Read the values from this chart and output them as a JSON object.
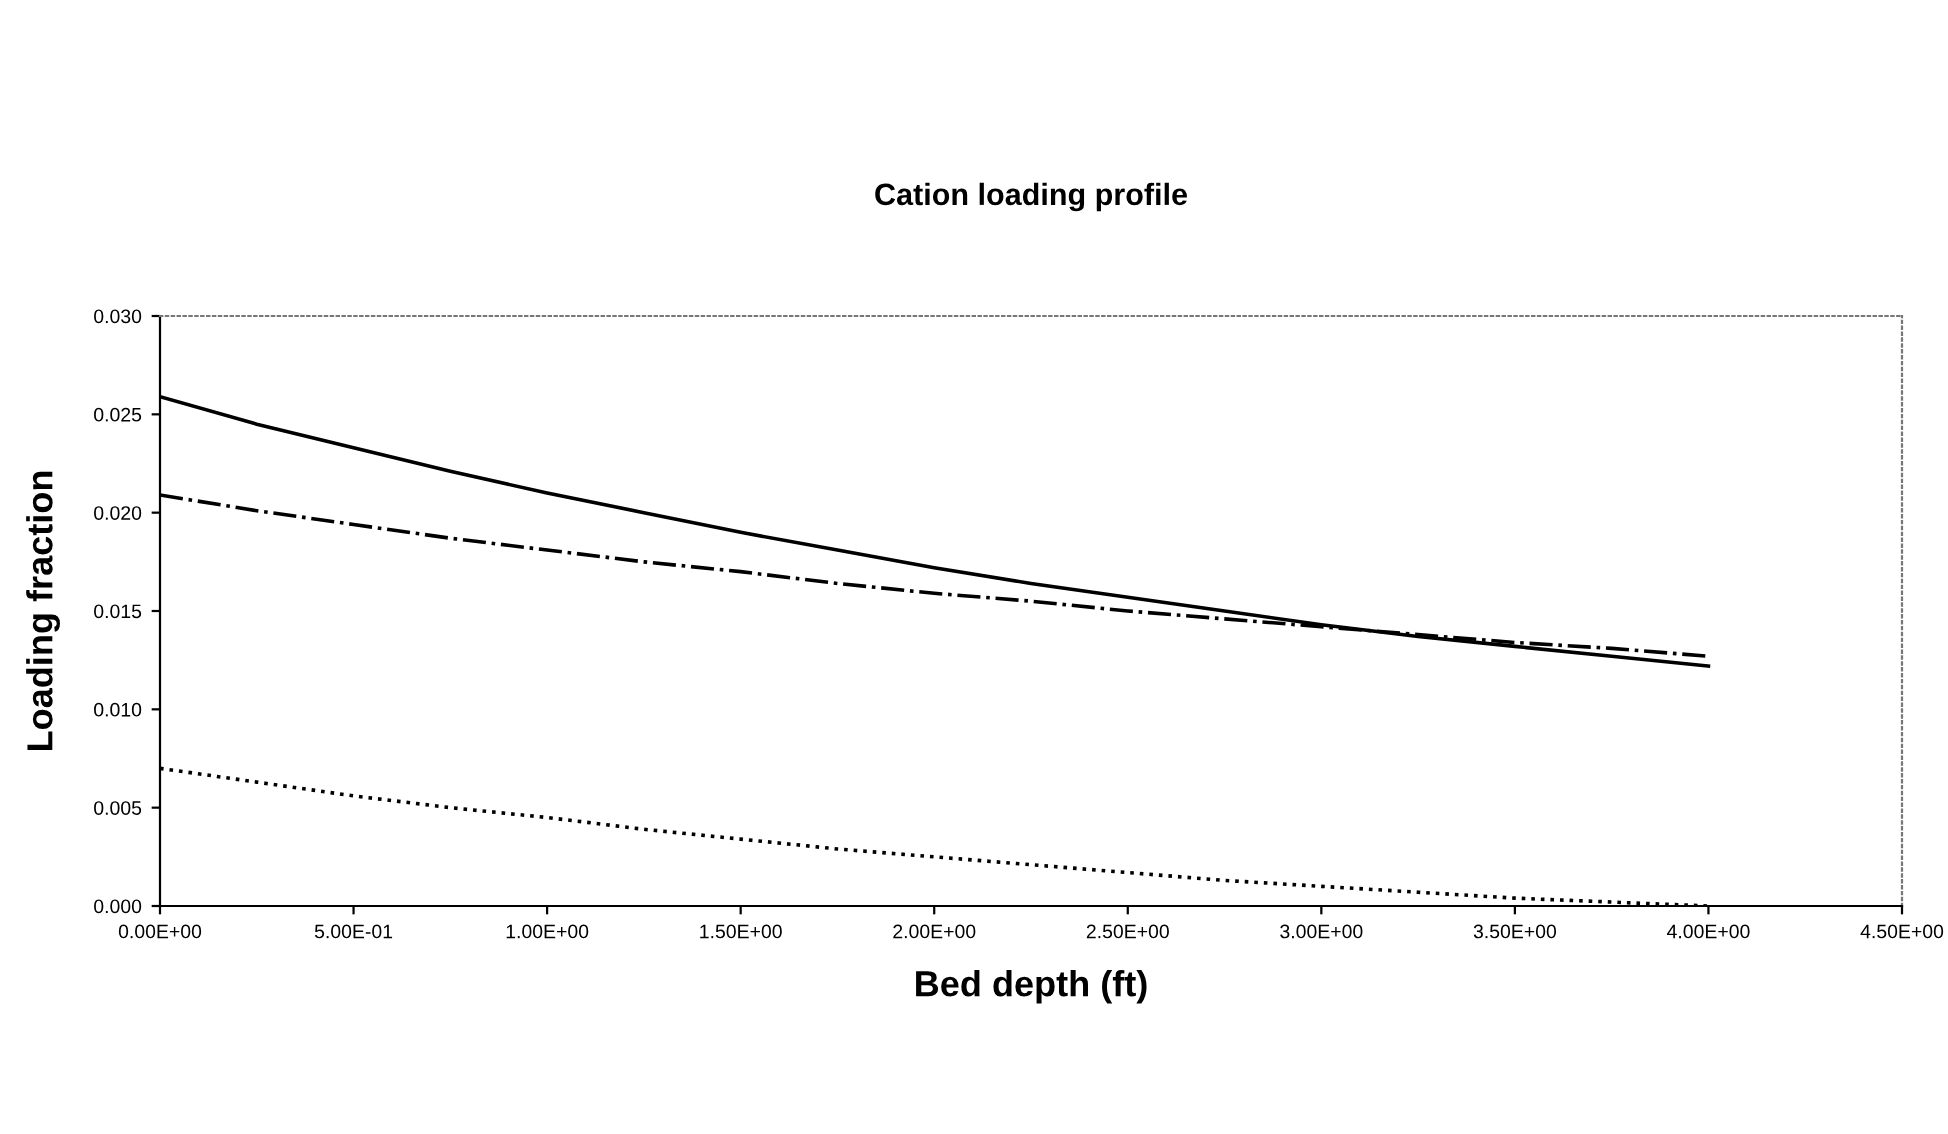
{
  "chart_data": {
    "type": "line",
    "title": "Cation loading profile",
    "xlabel": "Bed depth (ft)",
    "ylabel": "Loading fraction",
    "x": [
      0,
      0.25,
      0.5,
      0.75,
      1.0,
      1.25,
      1.5,
      1.75,
      2.0,
      2.25,
      2.5,
      2.75,
      3.0,
      3.25,
      3.5,
      3.75,
      4.0
    ],
    "series": [
      {
        "color": "#000000",
        "line_style": "solid",
        "values": [
          0.0259,
          0.0245,
          0.0233,
          0.0221,
          0.021,
          0.02,
          0.019,
          0.0181,
          0.0172,
          0.0164,
          0.0157,
          0.015,
          0.0143,
          0.0137,
          0.0132,
          0.0127,
          0.0122
        ]
      },
      {
        "color": "#000000",
        "line_style": "dashdot",
        "values": [
          0.0209,
          0.0201,
          0.0194,
          0.0187,
          0.0181,
          0.0175,
          0.017,
          0.0164,
          0.0159,
          0.0155,
          0.015,
          0.0146,
          0.0142,
          0.0138,
          0.0134,
          0.0131,
          0.0127
        ]
      },
      {
        "color": "#000000",
        "line_style": "dotted",
        "values": [
          0.007,
          0.0063,
          0.0056,
          0.005,
          0.0045,
          0.0039,
          0.0034,
          0.0029,
          0.0025,
          0.0021,
          0.0017,
          0.0013,
          0.001,
          0.0007,
          0.0004,
          0.0002,
          0.0
        ]
      }
    ],
    "xlim": [
      0,
      4.5
    ],
    "xticks": [
      {
        "value": 0,
        "label": "0.00E+00"
      },
      {
        "value": 0.5,
        "label": "5.00E-01"
      },
      {
        "value": 1.0,
        "label": "1.00E+00"
      },
      {
        "value": 1.5,
        "label": "1.50E+00"
      },
      {
        "value": 2.0,
        "label": "2.00E+00"
      },
      {
        "value": 2.5,
        "label": "2.50E+00"
      },
      {
        "value": 3.0,
        "label": "3.00E+00"
      },
      {
        "value": 3.5,
        "label": "3.50E+00"
      },
      {
        "value": 4.0,
        "label": "4.00E+00"
      },
      {
        "value": 4.5,
        "label": "4.50E+00"
      }
    ],
    "ylim": [
      0,
      0.03
    ],
    "yticks": [
      {
        "value": 0,
        "label": "0.000"
      },
      {
        "value": 0.005,
        "label": "0.005"
      },
      {
        "value": 0.01,
        "label": "0.010"
      },
      {
        "value": 0.015,
        "label": "0.015"
      },
      {
        "value": 0.02,
        "label": "0.020"
      },
      {
        "value": 0.025,
        "label": "0.025"
      },
      {
        "value": 0.03,
        "label": "0.030"
      }
    ],
    "grid": false
  }
}
